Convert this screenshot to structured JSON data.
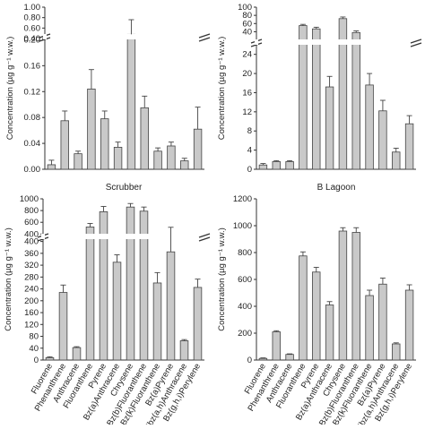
{
  "chart_data": [
    {
      "type": "bar",
      "title": "",
      "ylabel": "Concentration (µg g⁻¹ w.w.)",
      "categories": [
        "Fluorene",
        "Phenanthrene",
        "Anthracene",
        "Fluoranthene",
        "Pyrene",
        "Bz(a)Anthracene",
        "Chrysene",
        "Bz(b)Fluoranthene",
        "Bz(k)Fluoranthene",
        "Bz(a)Pyrene",
        "Dibz(a,h)Anthracene",
        "Bz(g,h,i)Perylene"
      ],
      "values": [
        0.007,
        0.075,
        0.024,
        0.124,
        0.078,
        0.034,
        0.48,
        0.095,
        0.028,
        0.036,
        0.013,
        0.062
      ],
      "errors": [
        0.007,
        0.015,
        0.004,
        0.03,
        0.012,
        0.008,
        0.28,
        0.018,
        0.005,
        0.006,
        0.004,
        0.034
      ],
      "axis_break": true,
      "lower_ylim": [
        0,
        0.22
      ],
      "lower_ticks": [
        "0.00",
        "0.04",
        "0.08",
        "0.12",
        "0.16",
        "0.20"
      ],
      "upper_ylim": [
        0.4,
        1.0
      ],
      "upper_ticks": [
        "0.40",
        "0.60",
        "0.80",
        "1.00"
      ]
    },
    {
      "type": "bar",
      "title": "",
      "ylabel": "Concentration (µg g⁻¹ w.w.)",
      "categories": [
        "Fluorene",
        "Phenanthrene",
        "Anthracene",
        "Fluoranthene",
        "Pyrene",
        "Bz(a)Anthracene",
        "Chrysene",
        "Bz(b)Fluoranthene",
        "Bz(k)Fluoranthene",
        "Bz(a)Pyrene",
        "Dibz(a,h)Anthracene",
        "Bz(g,h,i)Perylene"
      ],
      "values": [
        0.9,
        1.6,
        1.6,
        55,
        47,
        17.2,
        72,
        38,
        17.6,
        12.2,
        3.6,
        9.5
      ],
      "errors": [
        0.3,
        0.2,
        0.2,
        3,
        4,
        2.2,
        4,
        4,
        2.4,
        2.2,
        0.8,
        1.7
      ],
      "axis_break": true,
      "lower_ylim": [
        0,
        26
      ],
      "lower_ticks": [
        "0",
        "4",
        "8",
        "12",
        "16",
        "20",
        "24"
      ],
      "upper_ylim": [
        30,
        100
      ],
      "upper_ticks": [
        "40",
        "60",
        "80",
        "100"
      ]
    },
    {
      "type": "bar",
      "title": "Scrubber",
      "ylabel": "Concentration (µg g⁻¹ w.w.)",
      "categories": [
        "Fluorene",
        "Phenanthrene",
        "Anthracene",
        "Fluoranthene",
        "Pyrene",
        "Bz(a)Anthracene",
        "Chrysene",
        "Bz(b)Fluoranthene",
        "Bz(k)Fluoranthene",
        "Bz(a)Pyrene",
        "Dibz(a,h)Anthracene",
        "Bz(g,h,i)Perylene"
      ],
      "values": [
        8,
        228,
        42,
        520,
        780,
        330,
        860,
        790,
        260,
        365,
        65,
        245
      ],
      "errors": [
        3,
        25,
        3,
        60,
        90,
        25,
        60,
        70,
        35,
        150,
        4,
        28
      ],
      "axis_break": true,
      "lower_ylim": [
        0,
        420
      ],
      "lower_ticks": [
        "0",
        "40",
        "80",
        "120",
        "160",
        "200",
        "240",
        "280",
        "320",
        "360",
        "400"
      ],
      "upper_ylim": [
        420,
        1000
      ],
      "upper_ticks": [
        "400",
        "600",
        "800",
        "1000"
      ]
    },
    {
      "type": "bar",
      "title": "B Lagoon",
      "ylabel": "Concentration (µg g⁻¹ w.w.)",
      "categories": [
        "Fluorene",
        "Phenanthrene",
        "Anthracene",
        "Fluoranthene",
        "Pyrene",
        "Bz(a)Anthracene",
        "Chrysene",
        "Bz(b)Fluoranthene",
        "Bz(k)Fluoranthene",
        "Bz(a)Pyrene",
        "Dibz(a,h)Anthracene",
        "Bz(g,h,i)Perylene"
      ],
      "values": [
        12,
        210,
        42,
        775,
        655,
        410,
        960,
        950,
        480,
        565,
        120,
        520
      ],
      "errors": [
        4,
        8,
        4,
        30,
        35,
        25,
        25,
        35,
        40,
        45,
        8,
        40
      ],
      "axis_break": false,
      "ylim": [
        0,
        1200
      ],
      "ticks": [
        "0",
        "200",
        "400",
        "600",
        "800",
        "1000",
        "1200"
      ]
    }
  ]
}
